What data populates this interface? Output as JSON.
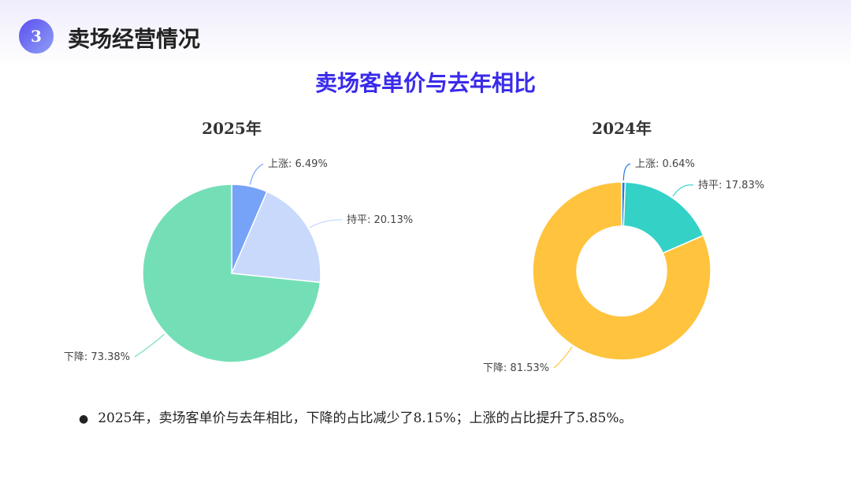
{
  "header": {
    "number": "3",
    "title": "卖场经营情况"
  },
  "chart_title": "卖场客单价与去年相比",
  "chart_data": [
    {
      "type": "pie",
      "title": "2025年",
      "categories": [
        "上涨",
        "持平",
        "下降"
      ],
      "values": [
        6.49,
        20.13,
        73.38
      ],
      "labels": [
        "上涨: 6.49%",
        "持平: 20.13%",
        "下降: 73.38%"
      ],
      "colors": [
        "#76a3f7",
        "#c8d9fb",
        "#74dfb6"
      ],
      "legend": "none"
    },
    {
      "type": "pie",
      "donut": true,
      "title": "2024年",
      "categories": [
        "上涨",
        "持平",
        "下降"
      ],
      "values": [
        0.64,
        17.83,
        81.53
      ],
      "labels": [
        "上涨: 0.64%",
        "持平: 17.83%",
        "下降: 81.53%"
      ],
      "colors": [
        "#1e7be8",
        "#34d1c7",
        "#ffc33d"
      ],
      "legend": "none"
    }
  ],
  "note": "2025年，卖场客单价与去年相比，下降的占比减少了8.15%；上涨的占比提升了5.85%。"
}
